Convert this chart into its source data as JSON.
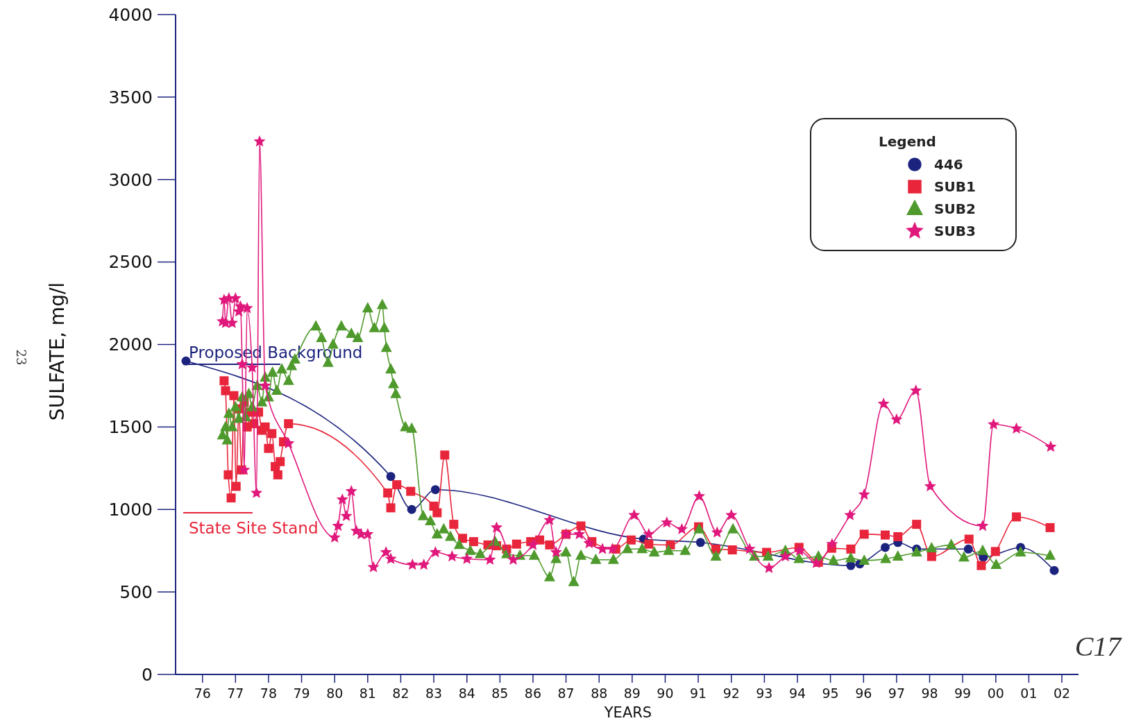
{
  "chart_data": {
    "type": "line",
    "xlabel": "YEARS",
    "ylabel": "SULFATE, mg/l",
    "legend_title": "Legend",
    "legend": "top right",
    "xlim": [
      "1975-10-01",
      "2003-01-01"
    ],
    "xticks": [
      {
        "value": "1976-07-01",
        "label": "76"
      },
      {
        "value": "1977-07-01",
        "label": "77"
      },
      {
        "value": "1978-07-01",
        "label": "78"
      },
      {
        "value": "1979-07-01",
        "label": "79"
      },
      {
        "value": "1980-07-01",
        "label": "80"
      },
      {
        "value": "1981-07-01",
        "label": "81"
      },
      {
        "value": "1982-07-01",
        "label": "82"
      },
      {
        "value": "1983-07-01",
        "label": "83"
      },
      {
        "value": "1984-07-01",
        "label": "84"
      },
      {
        "value": "1985-07-01",
        "label": "85"
      },
      {
        "value": "1986-07-01",
        "label": "86"
      },
      {
        "value": "1987-07-01",
        "label": "87"
      },
      {
        "value": "1988-07-01",
        "label": "88"
      },
      {
        "value": "1989-07-01",
        "label": "89"
      },
      {
        "value": "1990-07-01",
        "label": "90"
      },
      {
        "value": "1991-07-01",
        "label": "91"
      },
      {
        "value": "1992-07-01",
        "label": "92"
      },
      {
        "value": "1993-07-01",
        "label": "93"
      },
      {
        "value": "1994-07-01",
        "label": "94"
      },
      {
        "value": "1995-07-01",
        "label": "95"
      },
      {
        "value": "1996-07-01",
        "label": "96"
      },
      {
        "value": "1997-07-01",
        "label": "97"
      },
      {
        "value": "1998-07-01",
        "label": "98"
      },
      {
        "value": "1999-07-01",
        "label": "99"
      },
      {
        "value": "2000-07-01",
        "label": "00"
      },
      {
        "value": "2001-07-01",
        "label": "01"
      },
      {
        "value": "2002-07-01",
        "label": "02"
      }
    ],
    "ylim": [
      0,
      4000
    ],
    "yticks": [
      0,
      500,
      1000,
      1500,
      2000,
      2500,
      3000,
      3500,
      4000
    ],
    "ref_lines": [
      {
        "axis": "y",
        "value": 1880,
        "label": "Proposed Background",
        "color": "#1c237e"
      },
      {
        "axis": "y",
        "value": 980,
        "label": "State Site Stand",
        "color": "#e8253a"
      }
    ],
    "annotations": [
      "23",
      "C17"
    ],
    "series": [
      {
        "name": "446",
        "color": "#1c237e",
        "marker": "circle",
        "x": [
          "1976-01-01",
          "1982-03-13",
          "1982-10-30",
          "1983-07-19",
          "1989-11-03",
          "1991-07-26",
          "1996-02-11",
          "1996-05-21",
          "1997-02-25",
          "1997-07-15",
          "1998-02-07",
          "1999-09-02",
          "2000-02-14",
          "2001-04-01",
          "2002-04-08"
        ],
        "values": [
          1900,
          1200,
          1000,
          1120,
          820,
          800,
          660,
          670,
          770,
          800,
          760,
          760,
          710,
          770,
          630
        ]
      },
      {
        "name": "SUB1",
        "color": "#e8253a",
        "marker": "square",
        "x": [
          "1977-02-25",
          "1977-03-13",
          "1977-04-12",
          "1977-05-14",
          "1977-06-13",
          "1977-07-08",
          "1977-08-07",
          "1977-09-06",
          "1977-10-05",
          "1977-11-07",
          "1977-12-13",
          "1978-01-19",
          "1978-03-13",
          "1978-04-19",
          "1978-05-25",
          "1978-07-01",
          "1978-08-07",
          "1978-09-13",
          "1978-10-12",
          "1978-11-07",
          "1978-12-13",
          "1979-02-07",
          "1982-02-07",
          "1982-03-13",
          "1982-05-18",
          "1982-10-19",
          "1983-07-01",
          "1983-08-07",
          "1983-10-30",
          "1984-02-07",
          "1984-05-14",
          "1984-09-13",
          "1985-02-18",
          "1985-05-25",
          "1985-09-13",
          "1986-01-01",
          "1986-06-06",
          "1986-09-13",
          "1987-01-01",
          "1987-07-01",
          "1987-12-13",
          "1988-04-12",
          "1989-01-01",
          "1989-06-20",
          "1990-01-01",
          "1990-08-28",
          "1991-07-05",
          "1992-01-12",
          "1992-07-12",
          "1993-07-26",
          "1994-07-19",
          "1995-02-18",
          "1995-07-15",
          "1996-02-11",
          "1996-07-08",
          "1997-02-25",
          "1997-07-15",
          "1998-02-07",
          "1998-07-23",
          "1999-09-09",
          "2000-01-23",
          "2000-06-27",
          "2001-02-14",
          "2002-02-21"
        ],
        "values": [
          1780,
          1720,
          1210,
          1070,
          1690,
          1140,
          1610,
          1240,
          1650,
          1500,
          1590,
          1520,
          1590,
          1480,
          1500,
          1370,
          1460,
          1260,
          1210,
          1290,
          1410,
          1520,
          1100,
          1010,
          1150,
          1110,
          1020,
          980,
          1330,
          910,
          825,
          805,
          785,
          780,
          760,
          790,
          805,
          815,
          785,
          850,
          900,
          805,
          760,
          815,
          790,
          785,
          895,
          760,
          755,
          740,
          770,
          680,
          765,
          760,
          850,
          845,
          835,
          910,
          715,
          820,
          660,
          745,
          955,
          890
        ]
      },
      {
        "name": "SUB2",
        "color": "#4f9a2c",
        "marker": "triangle",
        "x": [
          "1977-02-07",
          "1977-03-13",
          "1977-04-01",
          "1977-04-19",
          "1977-05-25",
          "1977-07-01",
          "1977-08-07",
          "1977-09-13",
          "1977-10-19",
          "1977-11-25",
          "1978-01-01",
          "1978-02-25",
          "1978-04-19",
          "1978-05-25",
          "1978-07-01",
          "1978-08-14",
          "1978-10-01",
          "1978-11-25",
          "1979-02-07",
          "1979-03-13",
          "1979-04-19",
          "1979-12-06",
          "1980-02-07",
          "1980-04-19",
          "1980-06-13",
          "1980-09-13",
          "1981-01-01",
          "1981-03-13",
          "1981-07-01",
          "1981-09-13",
          "1981-12-09",
          "1982-01-01",
          "1982-01-23",
          "1982-03-13",
          "1982-04-12",
          "1982-05-07",
          "1982-08-21",
          "1982-10-30",
          "1983-03-06",
          "1983-05-25",
          "1983-08-07",
          "1983-10-19",
          "1984-01-01",
          "1984-04-08",
          "1984-08-07",
          "1984-11-25",
          "1985-05-07",
          "1985-09-13",
          "1986-02-07",
          "1986-07-15",
          "1987-01-01",
          "1987-03-13",
          "1987-07-01",
          "1987-09-24",
          "1987-12-13",
          "1988-05-25",
          "1988-12-06",
          "1989-05-11",
          "1989-10-19",
          "1990-03-02",
          "1990-08-07",
          "1991-02-07",
          "1991-07-12",
          "1992-01-12",
          "1992-07-19",
          "1993-03-13",
          "1993-08-11",
          "1994-02-18",
          "1994-07-19",
          "1995-02-18",
          "1995-08-03",
          "1996-02-11",
          "1996-07-08",
          "1997-03-02",
          "1997-07-15",
          "1998-02-07",
          "1998-07-23",
          "1999-02-25",
          "1999-07-15",
          "2000-02-07",
          "2000-07-05",
          "2001-04-01",
          "2002-02-21"
        ],
        "values": [
          1450,
          1500,
          1420,
          1580,
          1500,
          1620,
          1550,
          1680,
          1560,
          1700,
          1620,
          1750,
          1650,
          1800,
          1680,
          1830,
          1720,
          1850,
          1780,
          1870,
          1910,
          2110,
          2040,
          1890,
          2000,
          2110,
          2065,
          2040,
          2220,
          2100,
          2240,
          2100,
          1980,
          1850,
          1760,
          1700,
          1500,
          1490,
          960,
          930,
          850,
          880,
          835,
          785,
          750,
          730,
          805,
          730,
          720,
          720,
          590,
          700,
          740,
          560,
          720,
          695,
          695,
          760,
          760,
          740,
          750,
          750,
          880,
          715,
          880,
          715,
          715,
          750,
          700,
          715,
          690,
          705,
          690,
          700,
          715,
          740,
          765,
          785,
          710,
          750,
          665,
          740,
          720
        ]
      },
      {
        "name": "SUB3",
        "color": "#e0187c",
        "marker": "star",
        "x": [
          "1977-02-07",
          "1977-02-25",
          "1977-03-13",
          "1977-04-19",
          "1977-05-25",
          "1977-07-01",
          "1977-08-07",
          "1977-08-25",
          "1977-09-13",
          "1977-10-05",
          "1977-11-07",
          "1978-01-01",
          "1978-02-18",
          "1978-03-24",
          "1978-05-25",
          "1979-02-07",
          "1980-07-01",
          "1980-08-07",
          "1980-09-24",
          "1980-11-07",
          "1981-01-01",
          "1981-02-25",
          "1981-04-19",
          "1981-07-01",
          "1981-09-02",
          "1982-01-19",
          "1982-03-13",
          "1982-11-07",
          "1983-03-13",
          "1983-07-19",
          "1984-01-19",
          "1984-07-01",
          "1985-03-13",
          "1985-05-25",
          "1985-11-25",
          "1986-07-01",
          "1987-01-01",
          "1987-03-13",
          "1987-07-01",
          "1987-11-25",
          "1988-03-13",
          "1988-08-07",
          "1988-11-25",
          "1989-07-23",
          "1990-01-01",
          "1990-07-19",
          "1991-01-01",
          "1991-07-12",
          "1992-01-26",
          "1992-07-01",
          "1993-01-19",
          "1993-08-21",
          "1994-02-18",
          "1994-07-26",
          "1995-01-26",
          "1995-07-19",
          "1996-02-03",
          "1996-07-08",
          "1997-02-07",
          "1997-07-01",
          "1998-01-30",
          "1998-07-08",
          "2000-02-07",
          "2000-06-06",
          "2001-02-14",
          "2002-02-28"
        ],
        "values": [
          2140,
          2270,
          2130,
          2280,
          2130,
          2280,
          2200,
          2230,
          1880,
          1240,
          2220,
          1860,
          1100,
          3230,
          1750,
          1400,
          830,
          900,
          1060,
          960,
          1110,
          870,
          850,
          850,
          650,
          740,
          700,
          665,
          665,
          740,
          715,
          700,
          695,
          890,
          695,
          785,
          935,
          740,
          850,
          850,
          795,
          760,
          760,
          965,
          850,
          920,
          880,
          1080,
          860,
          965,
          760,
          645,
          715,
          750,
          675,
          790,
          965,
          1090,
          1640,
          1545,
          1720,
          1140,
          900,
          1515,
          1490,
          1380
        ]
      }
    ]
  }
}
